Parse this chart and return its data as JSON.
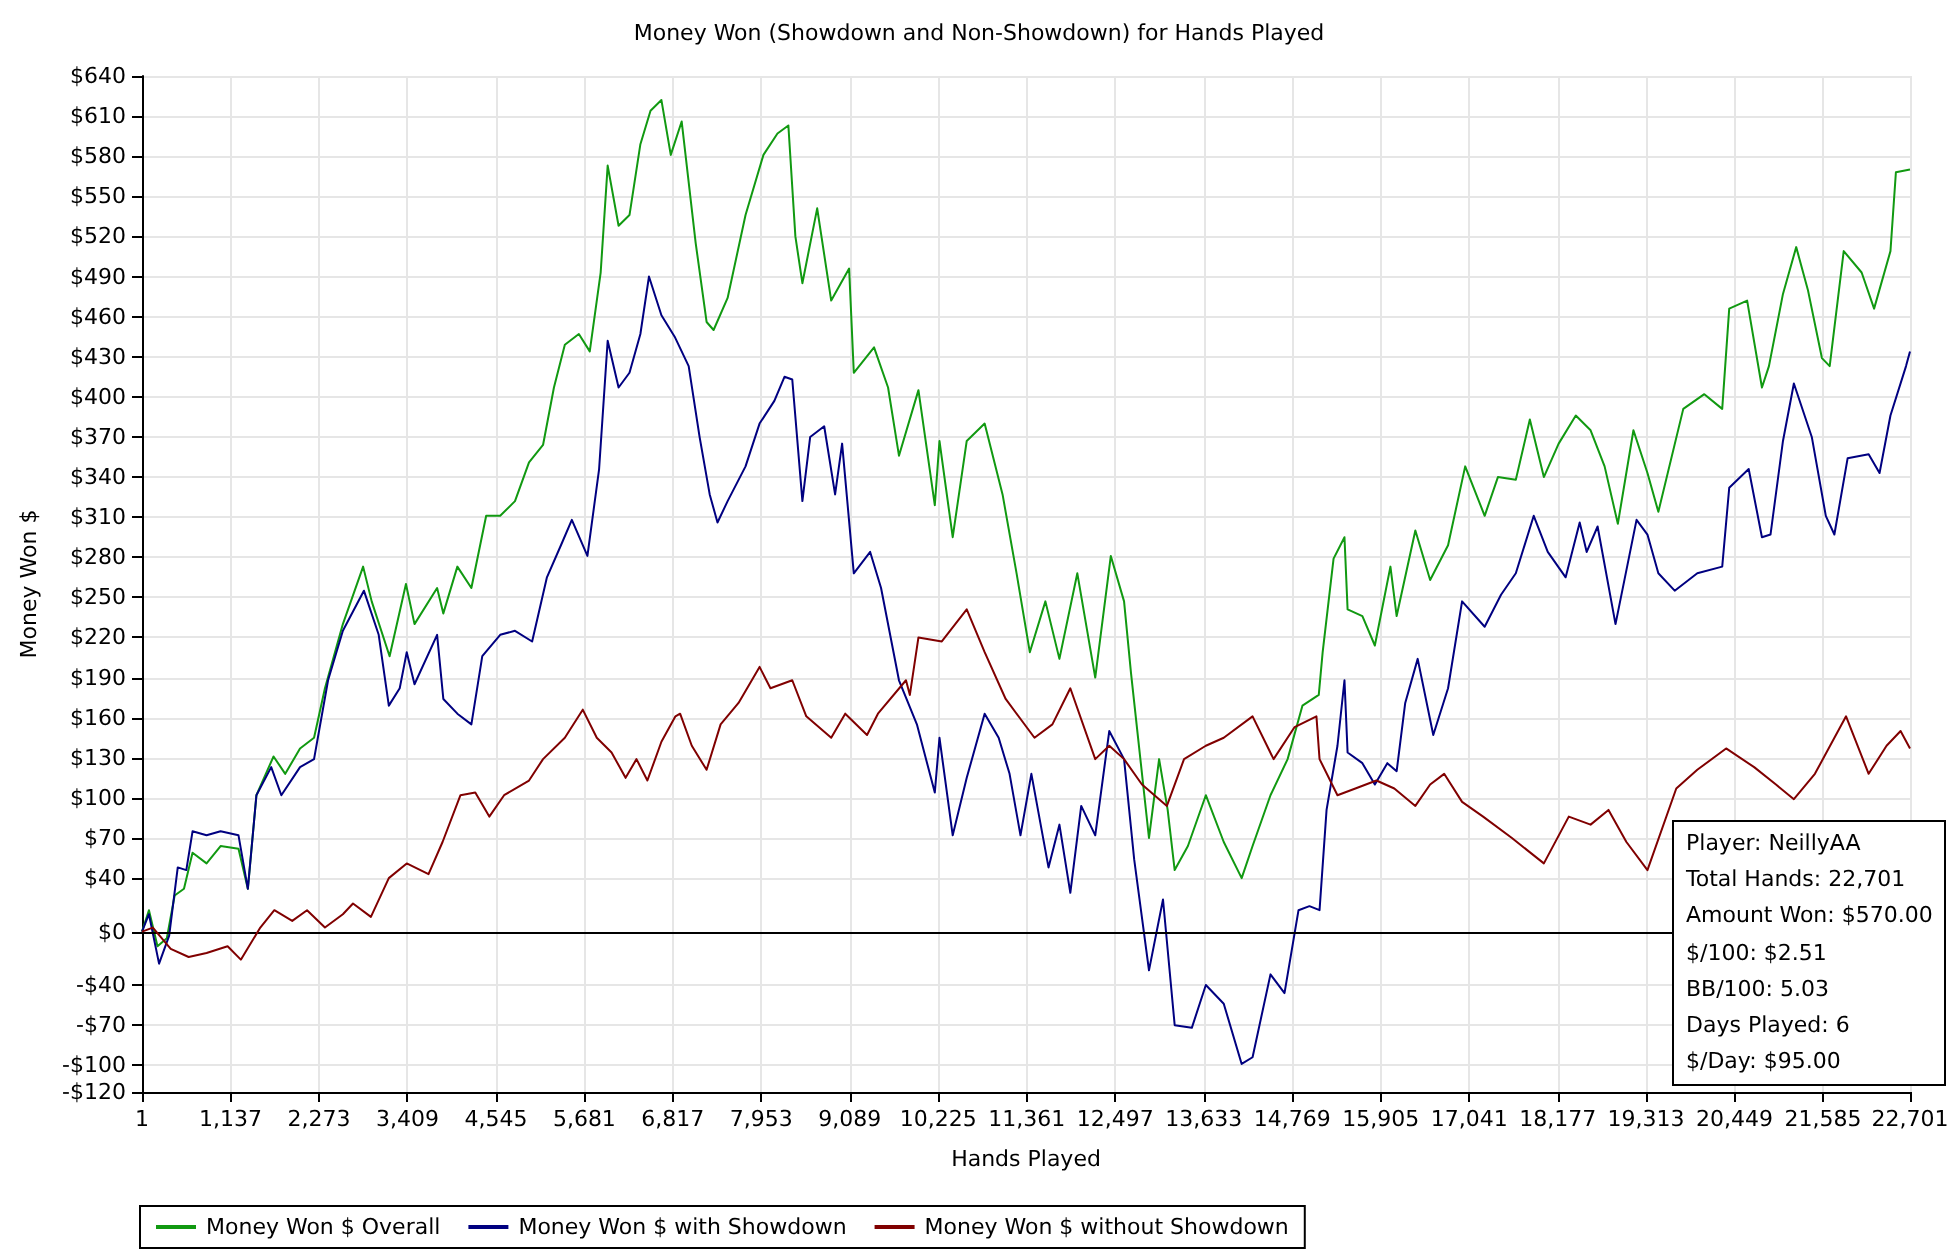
{
  "chart_data": {
    "type": "line",
    "title": "Money Won (Showdown and Non-Showdown) for Hands Played",
    "xlabel": "Hands Played",
    "ylabel": "Money Won $",
    "annotations": [
      "Player: NeillyAA",
      "Total Hands: 22,701",
      "Amount Won: $570.00",
      "$/100: $2.51",
      "BB/100: 5.03",
      "Days Played: 6",
      "$/Day: $95.00"
    ],
    "series": [
      {
        "name": "Money Won $ Overall",
        "color": "#119911",
        "x": [
          1,
          90,
          200,
          320,
          420,
          540,
          650,
          830,
          1010,
          1240,
          1360,
          1470,
          1690,
          1840,
          2030,
          2210,
          2350,
          2580,
          2840,
          2950,
          3180,
          3390,
          3500,
          3790,
          3870,
          4050,
          4230,
          4420,
          4600,
          4790,
          4970,
          5150,
          5290,
          5430,
          5610,
          5750,
          5890,
          5980,
          6120,
          6260,
          6400,
          6530,
          6670,
          6790,
          6930,
          7110,
          7250,
          7340,
          7520,
          7750,
          7980,
          8160,
          8300,
          8390,
          8480,
          8670,
          8850,
          9080,
          9140,
          9400,
          9580,
          9720,
          9970,
          10180,
          10240,
          10410,
          10590,
          10820,
          11050,
          11230,
          11400,
          11600,
          11780,
          12010,
          12240,
          12440,
          12610,
          12700,
          12930,
          13060,
          13170,
          13260,
          13430,
          13660,
          13890,
          14120,
          14260,
          14490,
          14710,
          14900,
          15110,
          15160,
          15300,
          15440,
          15480,
          15670,
          15830,
          16030,
          16110,
          16350,
          16540,
          16770,
          16990,
          17240,
          17410,
          17640,
          17820,
          18000,
          18190,
          18410,
          18600,
          18780,
          18950,
          19150,
          19330,
          19470,
          19790,
          20060,
          20290,
          20380,
          20610,
          20800,
          20890,
          21070,
          21240,
          21390,
          21570,
          21670,
          21850,
          22080,
          22240,
          22450,
          22520,
          22701
        ],
        "values": [
          0,
          16,
          -11,
          -5,
          27,
          32,
          59,
          51,
          64,
          62,
          32,
          102,
          131,
          118,
          137,
          145,
          182,
          230,
          273,
          247,
          206,
          260,
          230,
          257,
          238,
          273,
          257,
          311,
          311,
          322,
          351,
          364,
          407,
          439,
          447,
          434,
          493,
          573,
          528,
          536,
          589,
          614,
          622,
          581,
          606,
          515,
          456,
          450,
          474,
          536,
          581,
          597,
          603,
          520,
          485,
          541,
          472,
          496,
          418,
          437,
          407,
          356,
          405,
          319,
          367,
          295,
          367,
          380,
          327,
          268,
          209,
          247,
          204,
          268,
          190,
          281,
          247,
          193,
          70,
          129,
          91,
          46,
          64,
          102,
          67,
          40,
          64,
          102,
          129,
          169,
          177,
          209,
          279,
          295,
          241,
          236,
          214,
          273,
          236,
          300,
          263,
          289,
          348,
          311,
          340,
          338,
          383,
          340,
          365,
          386,
          375,
          348,
          305,
          375,
          343,
          314,
          391,
          402,
          391,
          466,
          472,
          407,
          423,
          477,
          512,
          480,
          429,
          423,
          509,
          493,
          466,
          509,
          568,
          570
        ]
      },
      {
        "name": "Money Won $ with Showdown",
        "color": "#000080",
        "x": [
          1,
          90,
          220,
          350,
          460,
          570,
          650,
          830,
          1010,
          1240,
          1360,
          1470,
          1660,
          1790,
          2030,
          2210,
          2390,
          2580,
          2850,
          3040,
          3170,
          3310,
          3400,
          3500,
          3790,
          3870,
          4050,
          4230,
          4370,
          4600,
          4790,
          5010,
          5200,
          5380,
          5520,
          5720,
          5870,
          5980,
          6120,
          6260,
          6400,
          6510,
          6670,
          6840,
          7020,
          7160,
          7290,
          7390,
          7520,
          7750,
          7930,
          8120,
          8250,
          8350,
          8480,
          8580,
          8760,
          8900,
          8990,
          9140,
          9350,
          9490,
          9720,
          9950,
          10180,
          10240,
          10410,
          10590,
          10820,
          11000,
          11140,
          11280,
          11420,
          11640,
          11780,
          11920,
          12060,
          12240,
          12420,
          12610,
          12740,
          12930,
          13110,
          13260,
          13480,
          13660,
          13890,
          14120,
          14260,
          14490,
          14670,
          14850,
          14990,
          15120,
          15210,
          15350,
          15440,
          15480,
          15670,
          15830,
          15990,
          16110,
          16220,
          16380,
          16580,
          16770,
          16950,
          17240,
          17450,
          17640,
          17870,
          18050,
          18280,
          18460,
          18550,
          18690,
          18920,
          19190,
          19330,
          19470,
          19680,
          19970,
          20290,
          20380,
          20630,
          20800,
          20910,
          21070,
          21210,
          21440,
          21620,
          21730,
          21900,
          22170,
          22310,
          22450,
          22650,
          22701
        ],
        "values": [
          0,
          13,
          -24,
          -3,
          48,
          46,
          75,
          72,
          75,
          72,
          32,
          102,
          123,
          102,
          123,
          129,
          188,
          225,
          255,
          222,
          169,
          182,
          209,
          185,
          222,
          174,
          163,
          155,
          206,
          222,
          225,
          217,
          265,
          289,
          308,
          281,
          346,
          442,
          407,
          418,
          447,
          490,
          461,
          445,
          423,
          370,
          327,
          306,
          322,
          348,
          380,
          397,
          415,
          413,
          322,
          370,
          378,
          327,
          365,
          268,
          284,
          257,
          188,
          155,
          104,
          145,
          72,
          115,
          163,
          145,
          118,
          72,
          118,
          48,
          80,
          29,
          94,
          72,
          150,
          129,
          54,
          -29,
          24,
          -70,
          -72,
          -40,
          -54,
          -99,
          -94,
          -32,
          -46,
          16,
          19,
          16,
          91,
          139,
          188,
          134,
          126,
          110,
          126,
          120,
          171,
          204,
          147,
          182,
          247,
          228,
          252,
          268,
          311,
          284,
          265,
          306,
          284,
          303,
          230,
          308,
          297,
          268,
          255,
          268,
          273,
          332,
          346,
          295,
          297,
          367,
          410,
          370,
          311,
          297,
          354,
          357,
          343,
          386,
          423,
          434
        ]
      },
      {
        "name": "Money Won $ without Showdown",
        "color": "#800000",
        "x": [
          1,
          140,
          370,
          600,
          830,
          1100,
          1270,
          1520,
          1700,
          1930,
          2120,
          2350,
          2580,
          2710,
          2940,
          3170,
          3400,
          3680,
          3860,
          4090,
          4280,
          4460,
          4650,
          4970,
          5150,
          5430,
          5660,
          5840,
          6030,
          6210,
          6350,
          6490,
          6670,
          6850,
          6910,
          7060,
          7250,
          7430,
          7660,
          7930,
          8070,
          8350,
          8530,
          8850,
          9030,
          9310,
          9450,
          9810,
          9860,
          9970,
          10270,
          10590,
          10820,
          11090,
          11460,
          11690,
          11920,
          12240,
          12420,
          12610,
          12840,
          13160,
          13380,
          13660,
          13890,
          14260,
          14530,
          14800,
          15080,
          15120,
          15350,
          15580,
          15850,
          16080,
          16350,
          16540,
          16720,
          16950,
          17220,
          17590,
          18000,
          18320,
          18600,
          18830,
          19060,
          19330,
          19700,
          19970,
          20340,
          20700,
          20980,
          21210,
          21480,
          21880,
          22170,
          22400,
          22580,
          22701
        ],
        "values": [
          0,
          3,
          -13,
          -19,
          -16,
          -11,
          -21,
          3,
          16,
          8,
          16,
          3,
          13,
          21,
          11,
          40,
          51,
          43,
          67,
          102,
          104,
          86,
          102,
          113,
          129,
          145,
          166,
          145,
          134,
          115,
          129,
          113,
          142,
          161,
          163,
          139,
          121,
          155,
          171,
          198,
          182,
          188,
          161,
          145,
          163,
          147,
          163,
          188,
          177,
          220,
          217,
          241,
          209,
          174,
          145,
          155,
          182,
          129,
          139,
          129,
          110,
          94,
          129,
          139,
          145,
          161,
          129,
          153,
          161,
          129,
          102,
          107,
          113,
          107,
          94,
          110,
          118,
          97,
          86,
          70,
          51,
          86,
          80,
          91,
          67,
          46,
          107,
          121,
          137,
          123,
          110,
          99,
          118,
          161,
          118,
          139,
          150,
          137
        ]
      }
    ],
    "xlim": [
      1,
      22701
    ],
    "xticks": [
      {
        "value": 1,
        "label": "1"
      },
      {
        "value": 1137,
        "label": "1,137"
      },
      {
        "value": 2273,
        "label": "2,273"
      },
      {
        "value": 3409,
        "label": "3,409"
      },
      {
        "value": 4545,
        "label": "4,545"
      },
      {
        "value": 5681,
        "label": "5,681"
      },
      {
        "value": 6817,
        "label": "6,817"
      },
      {
        "value": 7953,
        "label": "7,953"
      },
      {
        "value": 9089,
        "label": "9,089"
      },
      {
        "value": 10225,
        "label": "10,225"
      },
      {
        "value": 11361,
        "label": "11,361"
      },
      {
        "value": 12497,
        "label": "12,497"
      },
      {
        "value": 13633,
        "label": "13,633"
      },
      {
        "value": 14769,
        "label": "14,769"
      },
      {
        "value": 15905,
        "label": "15,905"
      },
      {
        "value": 17041,
        "label": "17,041"
      },
      {
        "value": 18177,
        "label": "18,177"
      },
      {
        "value": 19313,
        "label": "19,313"
      },
      {
        "value": 20449,
        "label": "20,449"
      },
      {
        "value": 21585,
        "label": "21,585"
      },
      {
        "value": 22701,
        "label": "22,701"
      }
    ],
    "ylim": [
      -120,
      640
    ],
    "yticks": [
      {
        "value": -120,
        "label": "-$120"
      },
      {
        "value": -100,
        "label": "-$100"
      },
      {
        "value": -70,
        "label": "-$70"
      },
      {
        "value": -40,
        "label": "-$40"
      },
      {
        "value": 0,
        "label": "$0"
      },
      {
        "value": 40,
        "label": "$40"
      },
      {
        "value": 70,
        "label": "$70"
      },
      {
        "value": 100,
        "label": "$100"
      },
      {
        "value": 130,
        "label": "$130"
      },
      {
        "value": 160,
        "label": "$160"
      },
      {
        "value": 190,
        "label": "$190"
      },
      {
        "value": 220,
        "label": "$220"
      },
      {
        "value": 250,
        "label": "$250"
      },
      {
        "value": 280,
        "label": "$280"
      },
      {
        "value": 310,
        "label": "$310"
      },
      {
        "value": 340,
        "label": "$340"
      },
      {
        "value": 370,
        "label": "$370"
      },
      {
        "value": 400,
        "label": "$400"
      },
      {
        "value": 430,
        "label": "$430"
      },
      {
        "value": 460,
        "label": "$460"
      },
      {
        "value": 490,
        "label": "$490"
      },
      {
        "value": 520,
        "label": "$520"
      },
      {
        "value": 550,
        "label": "$550"
      },
      {
        "value": 580,
        "label": "$580"
      },
      {
        "value": 610,
        "label": "$610"
      },
      {
        "value": 640,
        "label": "$640"
      }
    ],
    "ref_lines": [
      {
        "axis": "y",
        "value": 0,
        "color": "#000000"
      }
    ],
    "grid": true,
    "legend": "bottom left",
    "marker": "none",
    "line_style": "solid"
  }
}
